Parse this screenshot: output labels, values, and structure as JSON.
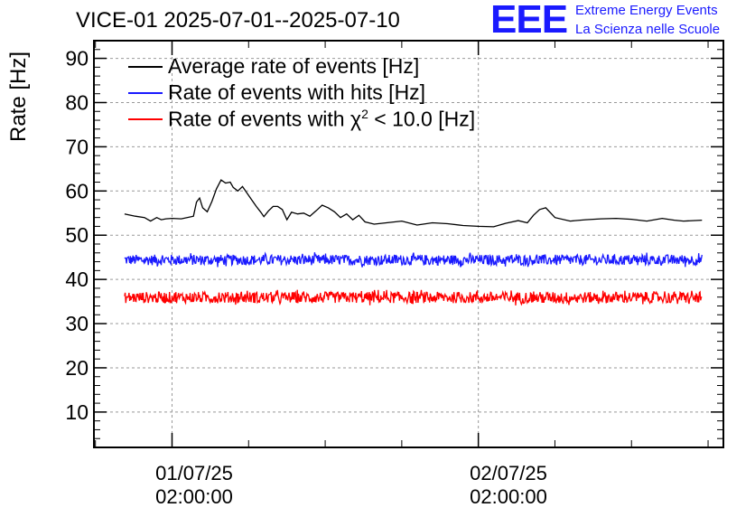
{
  "title": "VICE-01 2025-07-01--2025-07-10",
  "logo": {
    "mark": "EEE",
    "line1": "Extreme Energy Events",
    "line2": "La Scienza nelle Scuole",
    "color": "#1a1aff"
  },
  "chart_data": {
    "type": "line",
    "ylabel": "Rate [Hz]",
    "ylim": [
      2,
      94
    ],
    "yticks": [
      10,
      20,
      30,
      40,
      50,
      60,
      70,
      80,
      90
    ],
    "xlim": [
      -0.255,
      1.8
    ],
    "grid": true,
    "legend_position": "top-left",
    "x_tick_labels": [
      {
        "x": 0,
        "date": "01/07/25",
        "time": "02:00:00"
      },
      {
        "x": 1,
        "date": "02/07/25",
        "time": "02:00:00"
      }
    ],
    "series": [
      {
        "name": "Average rate of events [Hz]",
        "color": "#000000",
        "legend_label": "Average rate of events [Hz]",
        "x": [
          -0.155,
          -0.12,
          -0.09,
          -0.07,
          -0.05,
          -0.035,
          -0.02,
          0,
          0.03,
          0.07,
          0.08,
          0.09,
          0.1,
          0.115,
          0.13,
          0.145,
          0.16,
          0.175,
          0.19,
          0.2,
          0.215,
          0.23,
          0.245,
          0.26,
          0.275,
          0.29,
          0.3,
          0.315,
          0.33,
          0.345,
          0.36,
          0.375,
          0.39,
          0.41,
          0.43,
          0.45,
          0.47,
          0.49,
          0.51,
          0.53,
          0.55,
          0.57,
          0.59,
          0.61,
          0.63,
          0.66,
          0.7,
          0.75,
          0.8,
          0.85,
          0.9,
          0.95,
          1.0,
          1.05,
          1.09,
          1.13,
          1.16,
          1.18,
          1.2,
          1.22,
          1.25,
          1.3,
          1.35,
          1.4,
          1.45,
          1.5,
          1.55,
          1.6,
          1.64,
          1.67,
          1.7,
          1.73
        ],
        "values": [
          54.8,
          54.3,
          54.0,
          53.2,
          54.0,
          53.5,
          53.7,
          53.8,
          53.7,
          54.3,
          57.5,
          58.4,
          56.2,
          55.3,
          57.6,
          60.5,
          62.5,
          61.8,
          62.0,
          60.8,
          60.0,
          61.0,
          59.5,
          58.0,
          56.5,
          55.2,
          54.2,
          55.5,
          56.5,
          56.5,
          55.8,
          53.5,
          55.2,
          54.8,
          55.0,
          54.3,
          55.5,
          56.8,
          56.2,
          55.3,
          54.0,
          54.8,
          53.5,
          54.5,
          53.0,
          52.5,
          52.8,
          53.2,
          52.3,
          52.8,
          52.6,
          52.2,
          52.0,
          51.9,
          52.7,
          53.3,
          52.8,
          54.5,
          55.8,
          56.2,
          54.0,
          53.2,
          53.5,
          53.7,
          53.8,
          53.6,
          53.2,
          53.8,
          53.4,
          53.2,
          53.3,
          53.4
        ]
      },
      {
        "name": "Rate of events with hits [Hz]",
        "color": "#1a1aff",
        "legend_label": "Rate of events with hits [Hz]",
        "x_range": [
          -0.155,
          1.73
        ],
        "mean": 44.4,
        "noise_amplitude": 1.4,
        "points": 900
      },
      {
        "name": "Rate of events with χ² < 10.0 [Hz]",
        "color": "#ff0000",
        "legend_label_main": "Rate of events with χ",
        "legend_label_sup": "2",
        "legend_label_tail": " < 10.0 [Hz]",
        "x_range": [
          -0.155,
          1.73
        ],
        "mean": 35.9,
        "noise_amplitude": 1.5,
        "points": 900
      }
    ]
  }
}
